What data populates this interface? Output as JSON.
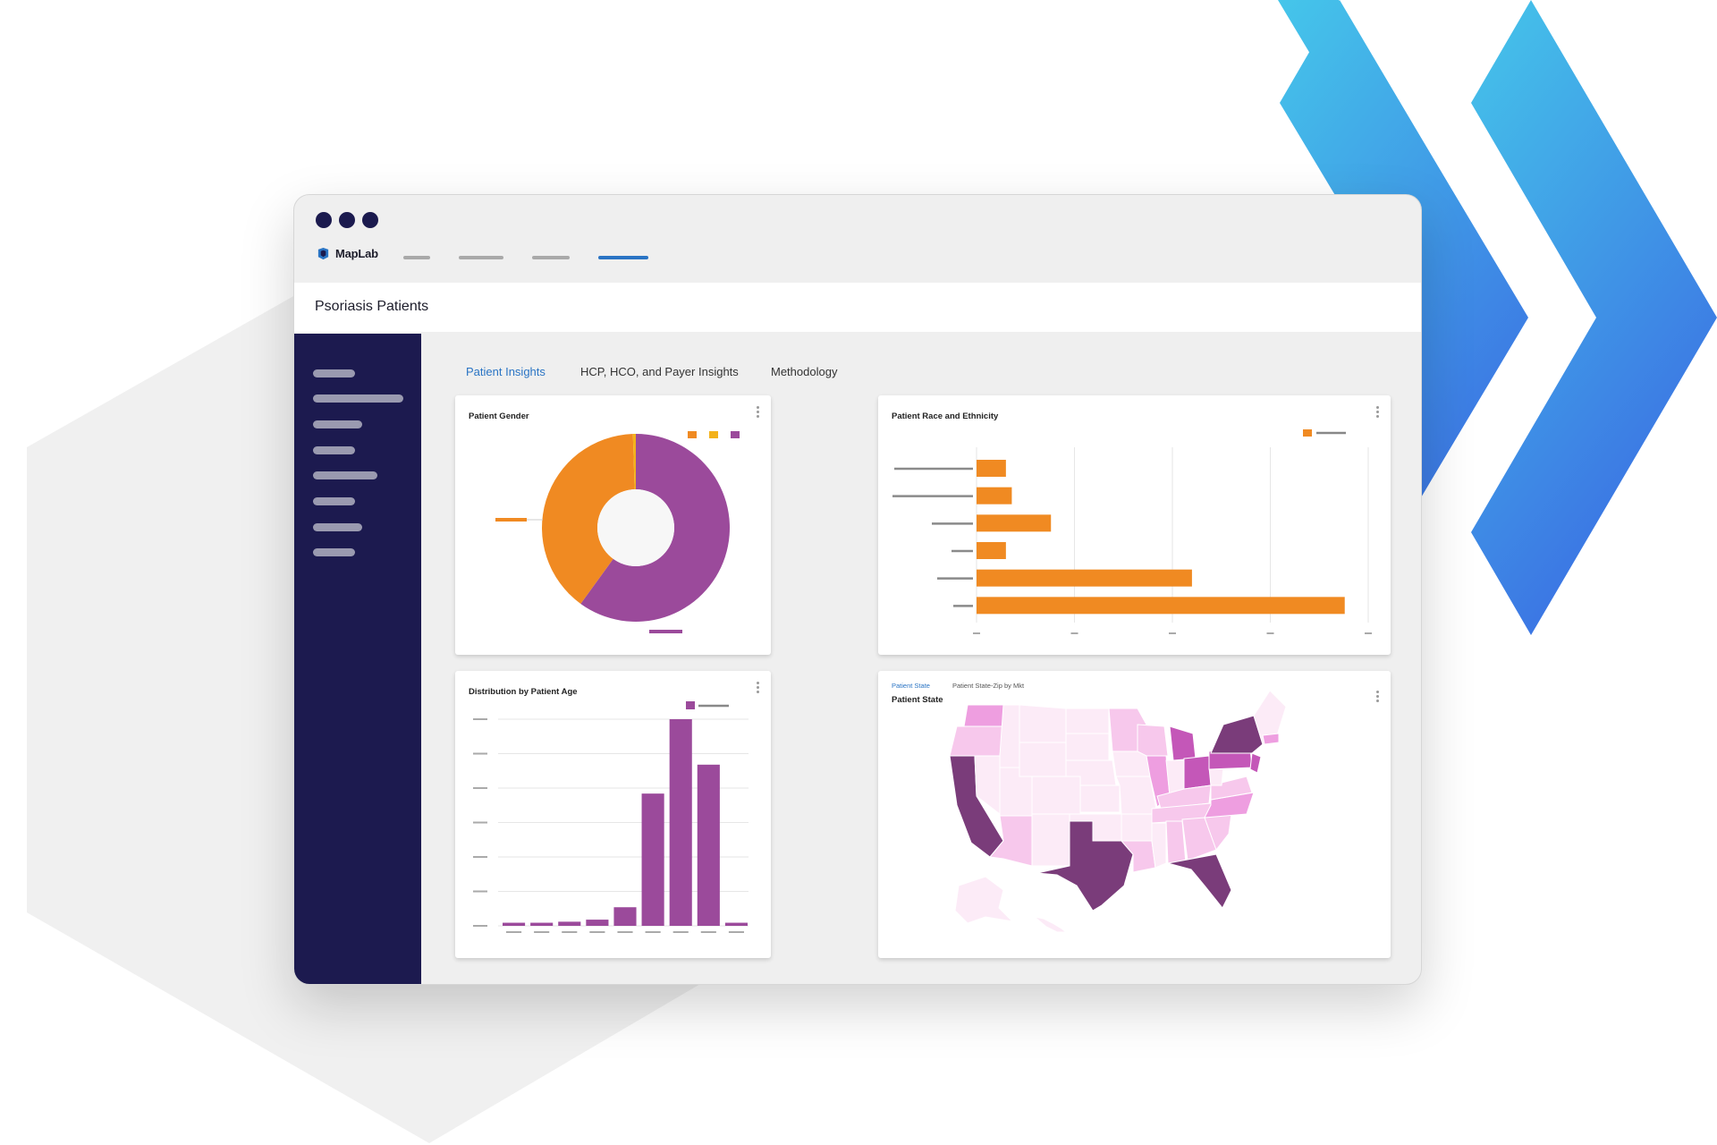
{
  "window": {
    "app_name": "MapLab",
    "page_title": "Psoriasis Patients",
    "icons": {
      "logo": "maplab-logo-icon",
      "window_controls": "window-dot-icon",
      "menu": "kebab-menu-icon"
    }
  },
  "tabs": [
    {
      "label": "Patient Insights",
      "active": true
    },
    {
      "label": "HCP, HCO, and Payer Insights",
      "active": false
    },
    {
      "label": "Methodology",
      "active": false
    }
  ],
  "colors": {
    "sidebar": "#1c1a4f",
    "accent_blue": "#2a74c4",
    "orange": "#f08a22",
    "yellow": "#f3b21b",
    "purple": "#9b4a9b",
    "map_scale": [
      "#fcebf7",
      "#f7c8ec",
      "#ee9ee0",
      "#c457b8",
      "#7a3c7a"
    ]
  },
  "cards": {
    "gender": {
      "title": "Patient Gender"
    },
    "race": {
      "title": "Patient Race and Ethnicity"
    },
    "age": {
      "title": "Distribution by Patient Age"
    },
    "state": {
      "title": "Patient State",
      "tabs": [
        {
          "label": "Patient State",
          "active": true
        },
        {
          "label": "Patient State-Zip by Mkt",
          "active": false
        }
      ]
    }
  },
  "chart_data": [
    {
      "type": "pie",
      "title": "Patient Gender",
      "donut": true,
      "slices": [
        {
          "value": 60,
          "color": "#9b4a9b"
        },
        {
          "value": 39.5,
          "color": "#f08a22"
        },
        {
          "value": 0.5,
          "color": "#f3b21b"
        }
      ],
      "legend_placement": "top-right"
    },
    {
      "type": "bar",
      "orientation": "horizontal",
      "title": "Patient Race and Ethnicity",
      "values": [
        7.5,
        9,
        19,
        7.5,
        55,
        94
      ],
      "xlim": [
        0,
        100
      ],
      "grid": true,
      "color": "#f08a22",
      "legend_placement": "top-right"
    },
    {
      "type": "bar",
      "title": "Distribution by Patient Age",
      "values": [
        1.5,
        1.5,
        2,
        3,
        9,
        64,
        100,
        78,
        1.5
      ],
      "ylim": [
        0,
        100
      ],
      "grid": true,
      "color": "#9b4a9b",
      "legend_placement": "top-right"
    }
  ]
}
